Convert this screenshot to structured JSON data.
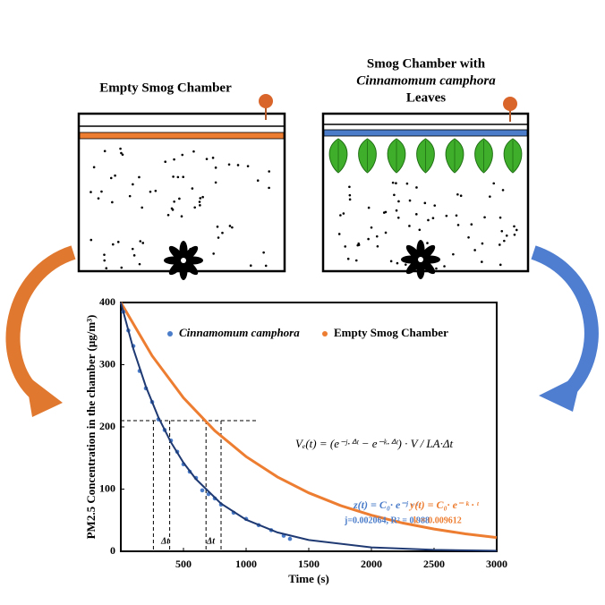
{
  "diagram": {
    "left_title": "Empty Smog Chamber",
    "right_title": [
      "Smog Chamber with",
      "Cinnamomum camphora",
      "Leaves"
    ]
  },
  "chart_data": {
    "type": "scatter",
    "x_label": "Time (s)",
    "y_label": "PM2.5 Concentration in the chamber (μg/m³)",
    "xlim": [
      0,
      3000
    ],
    "xticks": [
      500,
      1000,
      1500,
      2000,
      2500,
      3000
    ],
    "ylim": [
      0,
      400
    ],
    "yticks": [
      0,
      100,
      200,
      300,
      400
    ],
    "grid": false,
    "legend": "top",
    "series": [
      {
        "name": "Cinnamomum camphora",
        "type": "scatter",
        "color": "#4a7cc9",
        "x": [
          20,
          60,
          100,
          150,
          200,
          250,
          300,
          350,
          400,
          450,
          500,
          550,
          600,
          650,
          700,
          750,
          800,
          900,
          1000,
          1100,
          1200,
          1300,
          1350
        ],
        "values": [
          385,
          355,
          330,
          290,
          262,
          240,
          212,
          195,
          178,
          160,
          140,
          128,
          118,
          98,
          92,
          85,
          75,
          62,
          52,
          42,
          34,
          25,
          20
        ]
      },
      {
        "name": "Empty Smog Chamber",
        "type": "line",
        "color": "#ed7d31",
        "x": [
          0,
          250,
          500,
          750,
          1000,
          1250,
          1500,
          1750,
          2000,
          2250,
          2500,
          2750,
          3000
        ],
        "values": [
          400,
          314.2,
          246.8,
          193.8,
          152.2,
          119.6,
          93.9,
          73.8,
          58.0,
          45.5,
          35.8,
          28.1,
          22.1
        ]
      }
    ],
    "fit_curve": {
      "color": "#1f3a73",
      "x": [
        0,
        100,
        200,
        300,
        400,
        500,
        600,
        800,
        1000,
        1250,
        1500,
        2000,
        2500,
        3000
      ],
      "values": [
        400,
        325.4,
        264.7,
        215.4,
        175.2,
        142.5,
        116.0,
        76.7,
        50.8,
        30.3,
        18.1,
        6.4,
        2.3,
        0.8
      ]
    },
    "guides": {
      "y": 210,
      "x_end": 1100,
      "x": [
        260,
        390,
        680,
        800
      ]
    },
    "annotations": {
      "delta_left": "Δt",
      "delta_right": "Δt",
      "formula": "Vₑ(t) = (e⁻ʲ·ᐞᵗ − e⁻ᵏ·ᐞᵗ) · V / LA·Δt",
      "z_fit": "z(t) = C₀· e⁻ʲ · ᵗ",
      "z_params": "j=0.002064,  R² = 0.988",
      "y_fit": "y(t) = C₀· e⁻ ᵏ · ᵗ",
      "y_params": "k = 0.009612"
    }
  }
}
